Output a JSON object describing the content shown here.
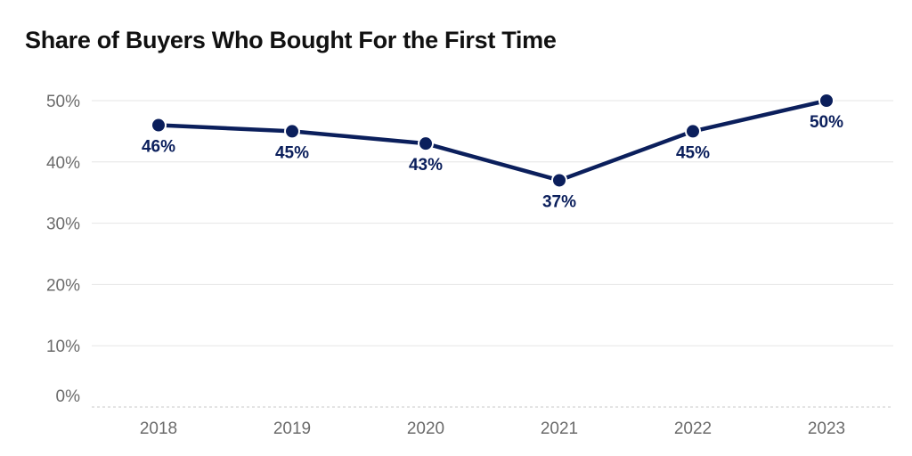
{
  "chart_data": {
    "type": "line",
    "title": "Share of Buyers Who Bought For the First Time",
    "xlabel": "",
    "ylabel": "",
    "categories": [
      "2018",
      "2019",
      "2020",
      "2021",
      "2022",
      "2023"
    ],
    "series": [
      {
        "values": [
          46,
          45,
          43,
          37,
          45,
          50
        ],
        "labels": [
          "46%",
          "45%",
          "43%",
          "37%",
          "45%",
          "50%"
        ],
        "label_position": [
          "below",
          "below",
          "below",
          "below",
          "below",
          "below"
        ]
      }
    ],
    "yticks": [
      0,
      10,
      20,
      30,
      40,
      50
    ],
    "ytick_labels": [
      "0%",
      "10%",
      "20%",
      "30%",
      "40%",
      "50%"
    ],
    "ylim": [
      0,
      50
    ],
    "grid": true,
    "legend": "none",
    "colors": {
      "line": "#0b1f5c",
      "tick_text": "#6b6b6b",
      "grid": "#e6e6e6"
    }
  }
}
